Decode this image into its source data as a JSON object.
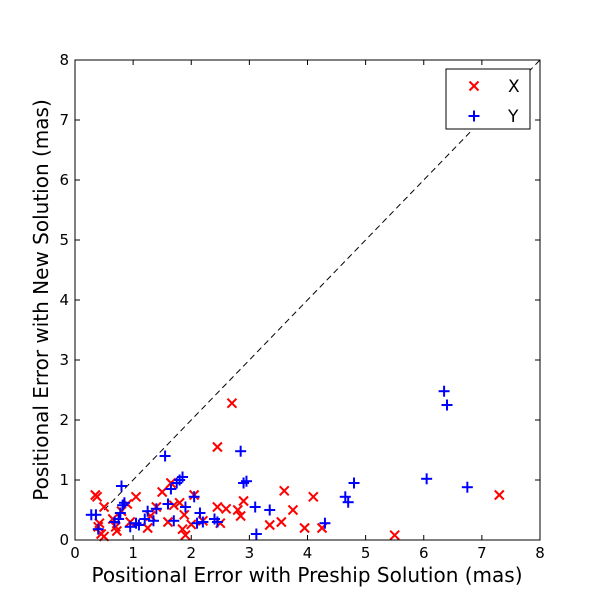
{
  "chart_data": {
    "type": "scatter",
    "title": "",
    "xlabel": "Positional Error with Preship Solution (mas)",
    "ylabel": "Positional Error with New Solution (mas)",
    "xlim": [
      0,
      8
    ],
    "ylim": [
      0,
      8
    ],
    "xticks": [
      "0",
      "1",
      "2",
      "3",
      "4",
      "5",
      "6",
      "7",
      "8"
    ],
    "yticks": [
      "0",
      "1",
      "2",
      "3",
      "4",
      "5",
      "6",
      "7",
      "8"
    ],
    "reference_line": {
      "style": "dashed",
      "from": [
        0.5,
        0.5
      ],
      "to": [
        8,
        8
      ]
    },
    "legend_position": "top-right",
    "series": [
      {
        "name": "X",
        "marker": "x",
        "color": "#ff0000",
        "points": [
          [
            0.35,
            0.75
          ],
          [
            0.38,
            0.72
          ],
          [
            0.4,
            0.22
          ],
          [
            0.42,
            0.28
          ],
          [
            0.45,
            0.1
          ],
          [
            0.5,
            0.06
          ],
          [
            0.5,
            0.55
          ],
          [
            0.65,
            0.35
          ],
          [
            0.7,
            0.22
          ],
          [
            0.72,
            0.15
          ],
          [
            0.8,
            0.48
          ],
          [
            0.9,
            0.6
          ],
          [
            0.95,
            0.3
          ],
          [
            1.05,
            0.72
          ],
          [
            1.25,
            0.2
          ],
          [
            1.3,
            0.4
          ],
          [
            1.4,
            0.55
          ],
          [
            1.5,
            0.8
          ],
          [
            1.6,
            0.3
          ],
          [
            1.65,
            0.95
          ],
          [
            1.7,
            0.58
          ],
          [
            1.8,
            0.62
          ],
          [
            1.85,
            0.18
          ],
          [
            1.88,
            0.42
          ],
          [
            1.9,
            0.08
          ],
          [
            2.0,
            0.26
          ],
          [
            2.05,
            0.75
          ],
          [
            2.2,
            0.32
          ],
          [
            2.45,
            0.55
          ],
          [
            2.45,
            1.55
          ],
          [
            2.5,
            0.28
          ],
          [
            2.6,
            0.52
          ],
          [
            2.7,
            2.28
          ],
          [
            2.8,
            0.5
          ],
          [
            2.85,
            0.4
          ],
          [
            2.9,
            0.65
          ],
          [
            3.35,
            0.25
          ],
          [
            3.55,
            0.3
          ],
          [
            3.6,
            0.82
          ],
          [
            3.75,
            0.5
          ],
          [
            3.95,
            0.2
          ],
          [
            4.1,
            0.72
          ],
          [
            4.25,
            0.2
          ],
          [
            5.5,
            0.08
          ],
          [
            7.3,
            0.75
          ]
        ]
      },
      {
        "name": "Y",
        "marker": "+",
        "color": "#0000ff",
        "points": [
          [
            0.28,
            0.42
          ],
          [
            0.36,
            0.42
          ],
          [
            0.4,
            0.18
          ],
          [
            0.68,
            0.3
          ],
          [
            0.75,
            0.35
          ],
          [
            0.78,
            0.45
          ],
          [
            0.8,
            0.9
          ],
          [
            0.82,
            0.58
          ],
          [
            0.85,
            0.62
          ],
          [
            0.95,
            0.22
          ],
          [
            1.05,
            0.28
          ],
          [
            1.1,
            0.25
          ],
          [
            1.2,
            0.35
          ],
          [
            1.25,
            0.48
          ],
          [
            1.35,
            0.32
          ],
          [
            1.4,
            0.52
          ],
          [
            1.55,
            1.4
          ],
          [
            1.6,
            0.6
          ],
          [
            1.65,
            0.85
          ],
          [
            1.7,
            0.32
          ],
          [
            1.75,
            0.95
          ],
          [
            1.8,
            1.0
          ],
          [
            1.85,
            1.05
          ],
          [
            1.9,
            0.55
          ],
          [
            2.05,
            0.72
          ],
          [
            2.1,
            0.28
          ],
          [
            2.15,
            0.45
          ],
          [
            2.2,
            0.3
          ],
          [
            2.4,
            0.35
          ],
          [
            2.45,
            0.3
          ],
          [
            2.85,
            1.48
          ],
          [
            2.9,
            0.95
          ],
          [
            2.95,
            0.98
          ],
          [
            3.1,
            0.55
          ],
          [
            3.12,
            0.1
          ],
          [
            3.35,
            0.5
          ],
          [
            4.3,
            0.28
          ],
          [
            4.65,
            0.72
          ],
          [
            4.7,
            0.63
          ],
          [
            4.8,
            0.95
          ],
          [
            6.05,
            1.02
          ],
          [
            6.35,
            2.48
          ],
          [
            6.4,
            2.25
          ],
          [
            6.75,
            0.88
          ]
        ]
      }
    ]
  }
}
